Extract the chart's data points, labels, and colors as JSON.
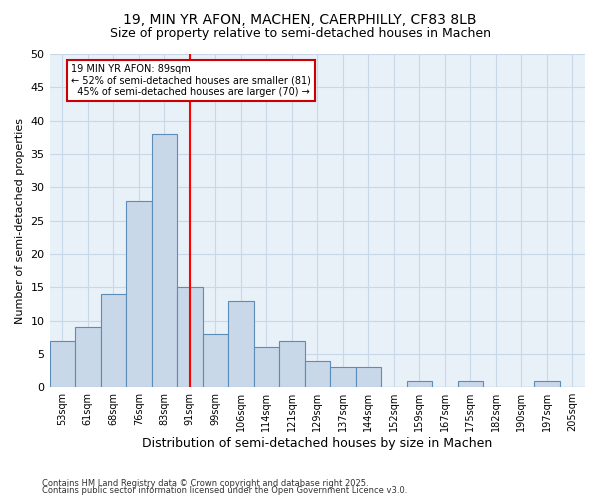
{
  "title_line1": "19, MIN YR AFON, MACHEN, CAERPHILLY, CF83 8LB",
  "title_line2": "Size of property relative to semi-detached houses in Machen",
  "xlabel": "Distribution of semi-detached houses by size in Machen",
  "ylabel": "Number of semi-detached properties",
  "bins": [
    "53sqm",
    "61sqm",
    "68sqm",
    "76sqm",
    "83sqm",
    "91sqm",
    "99sqm",
    "106sqm",
    "114sqm",
    "121sqm",
    "129sqm",
    "137sqm",
    "144sqm",
    "152sqm",
    "159sqm",
    "167sqm",
    "175sqm",
    "182sqm",
    "190sqm",
    "197sqm",
    "205sqm"
  ],
  "bar_heights": [
    7,
    9,
    14,
    28,
    38,
    15,
    8,
    13,
    6,
    7,
    4,
    3,
    3,
    0,
    1,
    0,
    1,
    0,
    0,
    1,
    0
  ],
  "bar_color": "#c8d8e8",
  "bar_edge_color": "#5b8db8",
  "grid_color": "#c8d8e8",
  "background_color": "#e8f0f8",
  "property_label": "19 MIN YR AFON: 89sqm",
  "pct_smaller": 52,
  "n_smaller": 81,
  "pct_larger": 45,
  "n_larger": 70,
  "vline_bin_index": 5,
  "annotation_box_color": "#cc0000",
  "footer_line1": "Contains HM Land Registry data © Crown copyright and database right 2025.",
  "footer_line2": "Contains public sector information licensed under the Open Government Licence v3.0.",
  "ylim": [
    0,
    50
  ],
  "yticks": [
    0,
    5,
    10,
    15,
    20,
    25,
    30,
    35,
    40,
    45,
    50
  ]
}
